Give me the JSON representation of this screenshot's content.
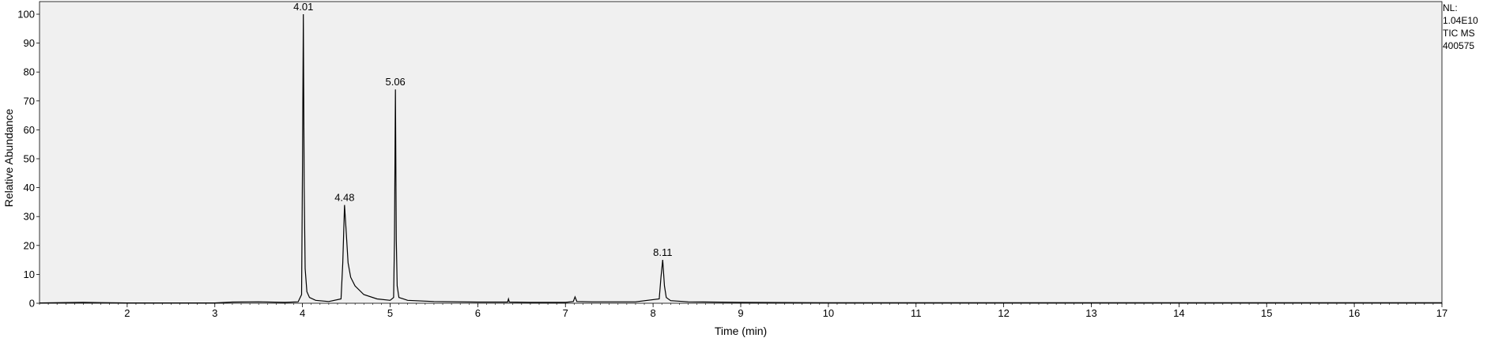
{
  "chart_data": {
    "type": "line",
    "xlabel": "Time (min)",
    "ylabel": "Relative Abundance",
    "xlim": [
      1.0,
      17.0
    ],
    "ylim": [
      0,
      100
    ],
    "x_ticks": [
      2,
      3,
      4,
      5,
      6,
      7,
      8,
      9,
      10,
      11,
      12,
      13,
      14,
      15,
      16,
      17
    ],
    "y_ticks": [
      0,
      10,
      20,
      30,
      40,
      50,
      60,
      70,
      80,
      90,
      100
    ],
    "grid": false,
    "info": [
      "NL:",
      "1.04E10",
      "TIC  MS",
      "400575"
    ],
    "peak_labels": [
      {
        "label": "4.01",
        "x": 4.01,
        "y": 100
      },
      {
        "label": "4.48",
        "x": 4.48,
        "y": 34
      },
      {
        "label": "5.06",
        "x": 5.06,
        "y": 74
      },
      {
        "label": "8.11",
        "x": 8.11,
        "y": 15
      }
    ],
    "series": [
      {
        "x": [
          1.0,
          1.5,
          2.0,
          2.5,
          3.0,
          3.2,
          3.5,
          3.8,
          3.95,
          3.99,
          4.0,
          4.01,
          4.02,
          4.03,
          4.05,
          4.08,
          4.15,
          4.3,
          4.44,
          4.46,
          4.48,
          4.5,
          4.52,
          4.55,
          4.6,
          4.7,
          4.85,
          5.0,
          5.04,
          5.05,
          5.06,
          5.07,
          5.08,
          5.1,
          5.2,
          5.5,
          6.0,
          6.34,
          6.35,
          6.36,
          6.6,
          7.0,
          7.09,
          7.11,
          7.13,
          7.3,
          7.8,
          8.07,
          8.09,
          8.11,
          8.13,
          8.15,
          8.2,
          8.4,
          9.0,
          10.0,
          11.0,
          12.0,
          13.0,
          14.0,
          15.0,
          16.0,
          17.0
        ],
        "y": [
          0.1,
          0.3,
          0.1,
          0.1,
          0.1,
          0.4,
          0.5,
          0.3,
          0.5,
          3,
          46,
          100,
          40,
          12,
          4,
          2,
          1,
          0.6,
          1.5,
          14,
          34,
          24,
          14,
          9,
          6,
          3,
          1.5,
          1,
          2,
          22,
          74,
          22,
          6,
          2,
          1,
          0.6,
          0.4,
          0.4,
          1.5,
          0.4,
          0.3,
          0.3,
          0.6,
          2.2,
          0.6,
          0.5,
          0.5,
          1.5,
          9,
          15,
          6,
          2,
          0.9,
          0.5,
          0.3,
          0.2,
          0.2,
          0.2,
          0.2,
          0.2,
          0.2,
          0.2,
          0.2
        ]
      }
    ]
  }
}
